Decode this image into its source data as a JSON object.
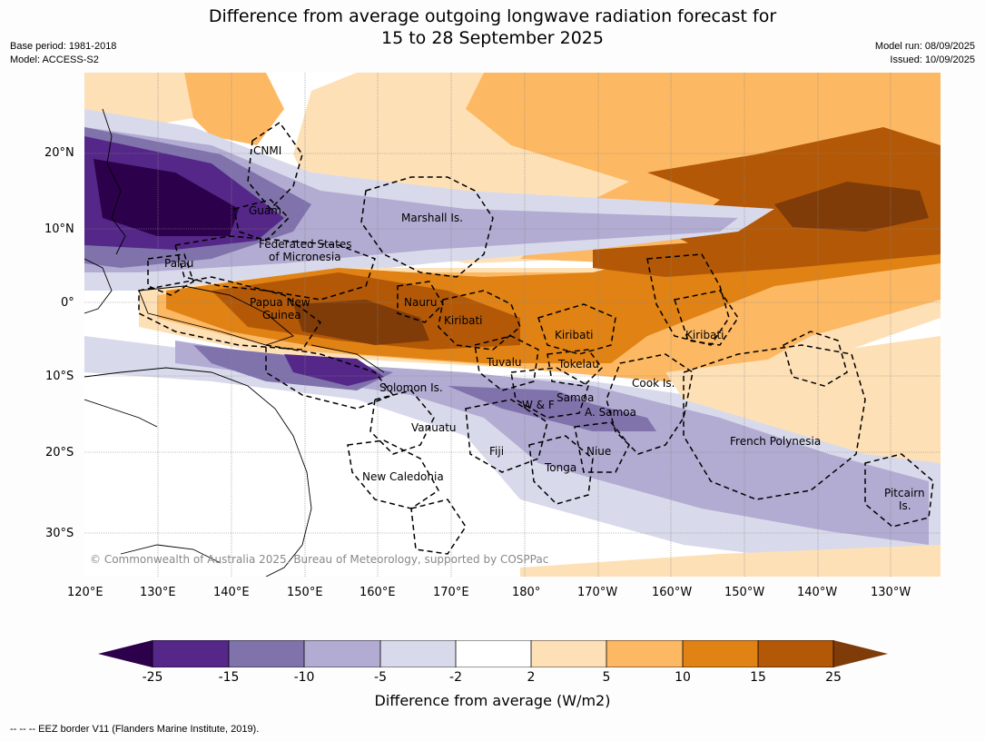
{
  "header": {
    "title_line1": "Difference from average outgoing longwave radiation forecast for",
    "title_line2": "15 to 28 September 2025",
    "base_period": "Base period: 1981-2018",
    "model": "Model: ACCESS-S2",
    "model_run": "Model run: 08/09/2025",
    "issued": "Issued: 10/09/2025"
  },
  "axes": {
    "lon_labels": [
      "120°E",
      "130°E",
      "140°E",
      "150°E",
      "160°E",
      "170°E",
      "180°",
      "170°W",
      "160°W",
      "150°W",
      "140°W",
      "130°W"
    ],
    "lat_labels": [
      "20°N",
      "10°N",
      "0°",
      "10°S",
      "20°S",
      "30°S"
    ]
  },
  "regions": [
    {
      "name": "CNMI"
    },
    {
      "name": "Guam"
    },
    {
      "name": "Marshall Is."
    },
    {
      "name": "Federated States"
    },
    {
      "name": "of Micronesia"
    },
    {
      "name": "Palau"
    },
    {
      "name": "Papua New"
    },
    {
      "name": "Guinea"
    },
    {
      "name": "Nauru"
    },
    {
      "name": "Kiribati"
    },
    {
      "name": "Kiribati"
    },
    {
      "name": "Kiribati"
    },
    {
      "name": "Tuvalu"
    },
    {
      "name": "Tokelau"
    },
    {
      "name": "Cook Is."
    },
    {
      "name": "Solomon Is."
    },
    {
      "name": "Samoa"
    },
    {
      "name": "W & F"
    },
    {
      "name": "A. Samoa"
    },
    {
      "name": "Vanuatu"
    },
    {
      "name": "Fiji"
    },
    {
      "name": "Niue"
    },
    {
      "name": "Tonga"
    },
    {
      "name": "New Caledonia"
    },
    {
      "name": "French Polynesia"
    },
    {
      "name": "Pitcairn"
    },
    {
      "name": "Is."
    }
  ],
  "copyright": "© Commonwealth of Australia 2025, Bureau of Meteorology, supported by COSPPac",
  "colorbar": {
    "title": "Difference from average (W/m2)",
    "ticks": [
      "-25",
      "-15",
      "-10",
      "-5",
      "-2",
      "2",
      "5",
      "10",
      "15",
      "25"
    ],
    "colors": {
      "lt_-25": "#2d004b",
      "-25_-15": "#542788",
      "-15_-10": "#8073ac",
      "-10_-5": "#b2abd2",
      "-5_-2": "#d8daeb",
      "-2_2": "#ffffff",
      "2_5": "#fee0b6",
      "5_10": "#fdb863",
      "10_15": "#e08214",
      "15_25": "#b35806",
      "gt_25": "#7f3b08"
    }
  },
  "footnote": "--  --  -- EEZ border V11 (Flanders Marine Institute, 2019)."
}
